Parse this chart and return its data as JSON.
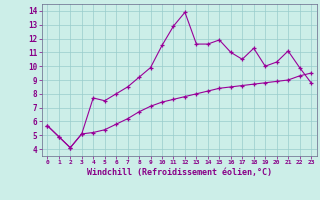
{
  "x": [
    0,
    1,
    2,
    3,
    4,
    5,
    6,
    7,
    8,
    9,
    10,
    11,
    12,
    13,
    14,
    15,
    16,
    17,
    18,
    19,
    20,
    21,
    22,
    23
  ],
  "line1": [
    5.7,
    4.9,
    4.1,
    5.1,
    7.7,
    7.5,
    8.0,
    8.5,
    9.2,
    9.9,
    11.5,
    12.9,
    13.9,
    11.6,
    11.6,
    11.9,
    11.0,
    10.5,
    11.3,
    10.0,
    10.3,
    11.1,
    9.9,
    8.8
  ],
  "line2": [
    5.7,
    4.9,
    4.1,
    5.1,
    5.2,
    5.4,
    5.8,
    6.2,
    6.7,
    7.1,
    7.4,
    7.6,
    7.8,
    8.0,
    8.2,
    8.4,
    8.5,
    8.6,
    8.7,
    8.8,
    8.9,
    9.0,
    9.3,
    9.5
  ],
  "xlim": [
    -0.5,
    23.5
  ],
  "ylim": [
    3.5,
    14.5
  ],
  "yticks": [
    4,
    5,
    6,
    7,
    8,
    9,
    10,
    11,
    12,
    13,
    14
  ],
  "xticks": [
    0,
    1,
    2,
    3,
    4,
    5,
    6,
    7,
    8,
    9,
    10,
    11,
    12,
    13,
    14,
    15,
    16,
    17,
    18,
    19,
    20,
    21,
    22,
    23
  ],
  "xlabel": "Windchill (Refroidissement éolien,°C)",
  "line_color": "#990099",
  "bg_color": "#cceee8",
  "grid_color": "#99cccc",
  "tick_color": "#880088",
  "label_color": "#880088"
}
